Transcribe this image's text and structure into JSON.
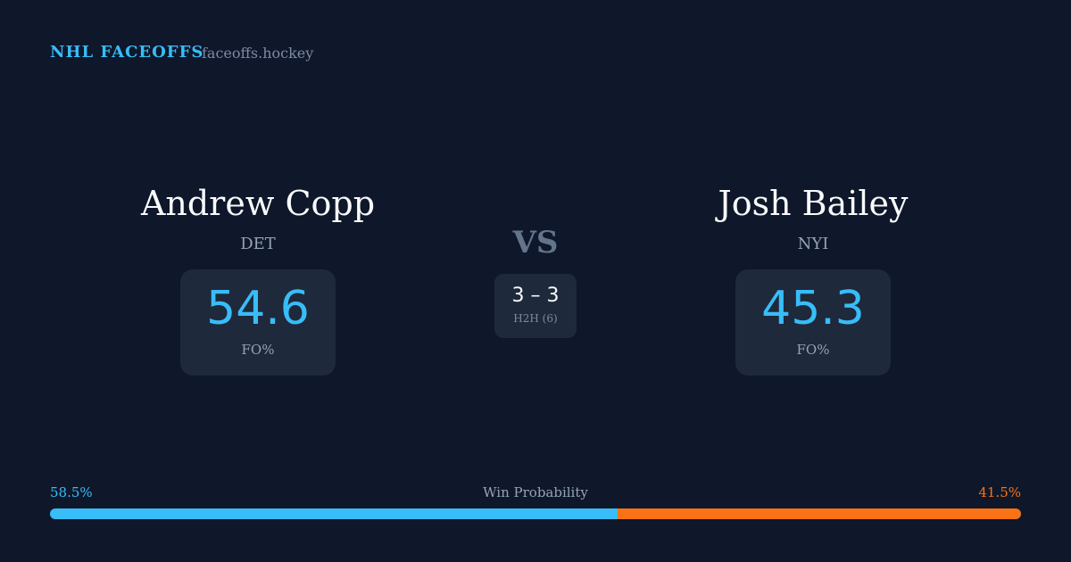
{
  "header": {
    "title": "NHL FACEOFFS",
    "site": "faceoffs.hockey"
  },
  "players": [
    {
      "name": "Andrew Copp",
      "team": "DET",
      "fo_pct": 54.6,
      "fo_label": "FO%"
    },
    {
      "name": "Josh Bailey",
      "team": "NYI",
      "fo_pct": 45.3,
      "fo_label": "FO%"
    }
  ],
  "vs": "VS",
  "h2h": {
    "score": "3 – 3",
    "label": "H2H (6)"
  },
  "win_probability": {
    "label": "Win Probability",
    "values": [
      58.5,
      41.5
    ],
    "value_labels": [
      "58.5%",
      "41.5%"
    ],
    "colors": [
      "#38bdf8",
      "#f97316"
    ]
  }
}
